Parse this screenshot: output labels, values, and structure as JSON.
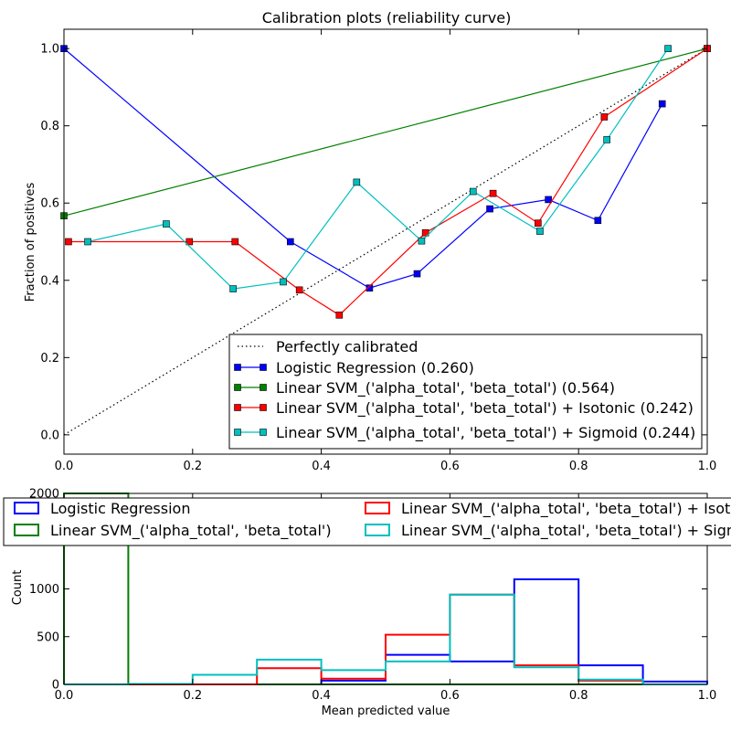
{
  "chart_data": [
    {
      "type": "line",
      "title": "Calibration plots  (reliability curve)",
      "xlabel": "",
      "ylabel": "Fraction of positives",
      "xlim": [
        0.0,
        1.0
      ],
      "ylim": [
        -0.05,
        1.05
      ],
      "x_ticks": [
        "0.0",
        "0.2",
        "0.4",
        "0.6",
        "0.8",
        "1.0"
      ],
      "y_ticks": [
        "0.0",
        "0.2",
        "0.4",
        "0.6",
        "0.8",
        "1.0"
      ],
      "grid": false,
      "legend_position": "lower-right",
      "series": [
        {
          "name": "Perfectly calibrated",
          "color": "#000000",
          "style": "dotted",
          "marker": "none",
          "points": [
            [
              0.0,
              0.0
            ],
            [
              1.0,
              1.0
            ]
          ]
        },
        {
          "name": "Logistic Regression (0.260)",
          "color": "#0000ff",
          "style": "solid",
          "marker": "square",
          "points": [
            [
              0.0,
              1.0
            ],
            [
              0.352,
              0.5
            ],
            [
              0.475,
              0.38
            ],
            [
              0.549,
              0.417
            ],
            [
              0.662,
              0.585
            ],
            [
              0.753,
              0.609
            ],
            [
              0.83,
              0.555
            ],
            [
              0.93,
              0.857
            ]
          ]
        },
        {
          "name": "Linear SVM_('alpha_total', 'beta_total') (0.564)",
          "color": "#008000",
          "style": "solid",
          "marker": "square",
          "points": [
            [
              0.0,
              0.567
            ],
            [
              1.0,
              1.0
            ]
          ]
        },
        {
          "name": "Linear SVM_('alpha_total', 'beta_total') + Isotonic (0.242)",
          "color": "#ff0000",
          "style": "solid",
          "marker": "square",
          "points": [
            [
              0.007,
              0.5
            ],
            [
              0.195,
              0.5
            ],
            [
              0.266,
              0.5
            ],
            [
              0.366,
              0.375
            ],
            [
              0.428,
              0.31
            ],
            [
              0.562,
              0.523
            ],
            [
              0.667,
              0.625
            ],
            [
              0.737,
              0.548
            ],
            [
              0.84,
              0.823
            ],
            [
              1.0,
              1.0
            ]
          ]
        },
        {
          "name": "Linear SVM_('alpha_total', 'beta_total') + Sigmoid (0.244)",
          "color": "#00bfbf",
          "style": "solid",
          "marker": "square",
          "points": [
            [
              0.037,
              0.5
            ],
            [
              0.159,
              0.546
            ],
            [
              0.263,
              0.378
            ],
            [
              0.341,
              0.396
            ],
            [
              0.455,
              0.654
            ],
            [
              0.556,
              0.502
            ],
            [
              0.636,
              0.63
            ],
            [
              0.74,
              0.527
            ],
            [
              0.844,
              0.764
            ],
            [
              0.939,
              1.0
            ]
          ]
        }
      ]
    },
    {
      "type": "bar",
      "subtype": "histogram-step",
      "title": "",
      "xlabel": "Mean predicted value",
      "ylabel": "Count",
      "xlim": [
        0.0,
        1.0
      ],
      "ylim": [
        0,
        2000
      ],
      "x_ticks": [
        "0.0",
        "0.2",
        "0.4",
        "0.6",
        "0.8",
        "1.0"
      ],
      "y_ticks": [
        "0",
        "500",
        "1000",
        "2000"
      ],
      "bin_edges": [
        0.0,
        0.1,
        0.2,
        0.3,
        0.4,
        0.5,
        0.6,
        0.7,
        0.8,
        0.9,
        1.0
      ],
      "grid": false,
      "legend_position": "top",
      "series": [
        {
          "name": "Logistic Regression",
          "color": "#0000ff",
          "values": [
            0,
            0,
            0,
            0,
            40,
            310,
            240,
            1100,
            200,
            30
          ]
        },
        {
          "name": "Linear SVM_('alpha_total', 'beta_total')",
          "color": "#008000",
          "values": [
            2000,
            0,
            0,
            0,
            0,
            0,
            0,
            0,
            0,
            0
          ]
        },
        {
          "name": "Linear SVM_('alpha_total', 'beta_total') + Isotonic",
          "color": "#ff0000",
          "values": [
            0,
            0,
            0,
            170,
            60,
            520,
            940,
            200,
            40,
            0
          ]
        },
        {
          "name": "Linear SVM_('alpha_total', 'beta_total') + Sigmoid",
          "color": "#00bfbf",
          "values": [
            0,
            5,
            100,
            260,
            150,
            240,
            940,
            180,
            50,
            0
          ]
        }
      ]
    }
  ]
}
